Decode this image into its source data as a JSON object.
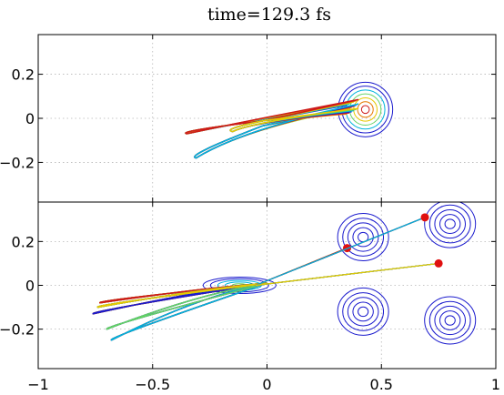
{
  "title": "time=129.3 fs",
  "chart_data": [
    {
      "type": "line",
      "panel": "top",
      "title": "time=129.3 fs",
      "xlim": [
        -1,
        1
      ],
      "ylim": [
        -0.38,
        0.38
      ],
      "yticks": [
        -0.2,
        0,
        0.2
      ],
      "ytick_labels": [
        "−0.2",
        "0",
        "0.2"
      ],
      "xticks": [
        -1,
        -0.5,
        0,
        0.5,
        1
      ],
      "grid": true,
      "contour_centers": [
        [
          0.43,
          0.04
        ]
      ],
      "trajectory_tips": [
        [
          -0.4,
          -0.06
        ],
        [
          -0.36,
          -0.17
        ],
        [
          -0.2,
          -0.05
        ]
      ],
      "colors": [
        "#1a1acd",
        "#00b4dc",
        "#64d264",
        "#e6c800",
        "#e67800",
        "#cd1a1a"
      ]
    },
    {
      "type": "line",
      "panel": "bottom",
      "xlim": [
        -1,
        1
      ],
      "ylim": [
        -0.38,
        0.38
      ],
      "yticks": [
        -0.2,
        0,
        0.2
      ],
      "ytick_labels": [
        "−0.2",
        "0",
        "0.2"
      ],
      "xticks": [
        -1,
        -0.5,
        0,
        0.5,
        1
      ],
      "xtick_labels": [
        "−1",
        "−0.5",
        "0",
        "0.5",
        "1"
      ],
      "grid": true,
      "contour_centers": [
        [
          -0.12,
          0.0
        ],
        [
          0.42,
          0.22
        ],
        [
          0.42,
          -0.12
        ],
        [
          0.8,
          0.28
        ],
        [
          0.8,
          -0.16
        ]
      ],
      "red_points": [
        [
          0.35,
          0.17
        ],
        [
          0.69,
          0.31
        ],
        [
          0.75,
          0.1
        ]
      ],
      "colors": [
        "#1a1acd",
        "#00b4dc",
        "#64d264",
        "#e6c800",
        "#e67800",
        "#cd1a1a"
      ]
    }
  ]
}
